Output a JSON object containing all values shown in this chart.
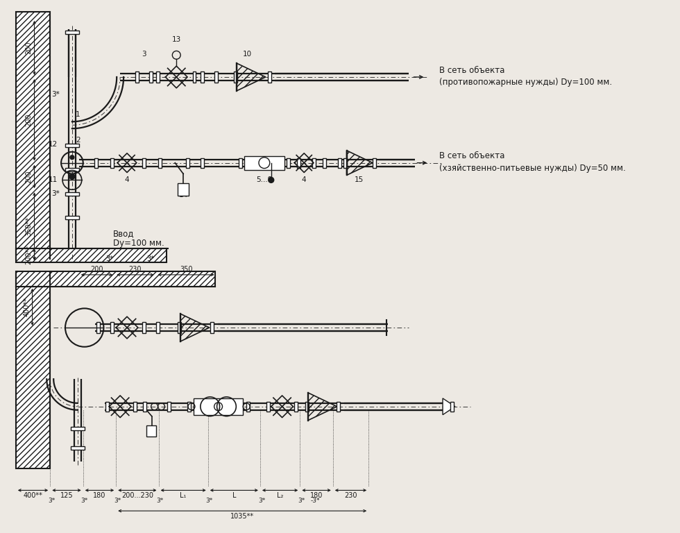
{
  "bg_color": "#ede9e3",
  "line_color": "#1a1a1a",
  "figsize": [
    9.8,
    7.68
  ],
  "dpi": 100,
  "labels": {
    "bypass_line1": "В сеть объекта",
    "bypass_line2": "(противопожарные нужды) Dy=100 мм.",
    "main_line1": "В сеть объекта",
    "main_line2": "(хзяйственно-питьевые нужды) Dy=50 мм.",
    "inlet1": "Ввод",
    "inlet2": "Dy=100 мм."
  }
}
